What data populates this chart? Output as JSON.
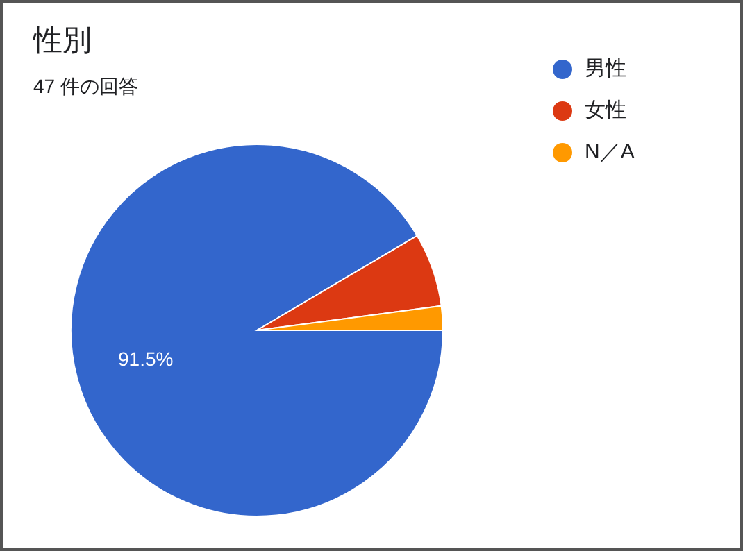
{
  "chart_data": {
    "type": "pie",
    "title": "性別",
    "subtitle": "47 件の回答",
    "categories": [
      "男性",
      "女性",
      "N／A"
    ],
    "values": [
      91.5,
      6.4,
      2.1
    ],
    "colors": [
      "#3366cc",
      "#dc3912",
      "#ff9900"
    ],
    "value_labels": [
      "91.5%",
      null,
      null
    ],
    "legend": "top right"
  }
}
